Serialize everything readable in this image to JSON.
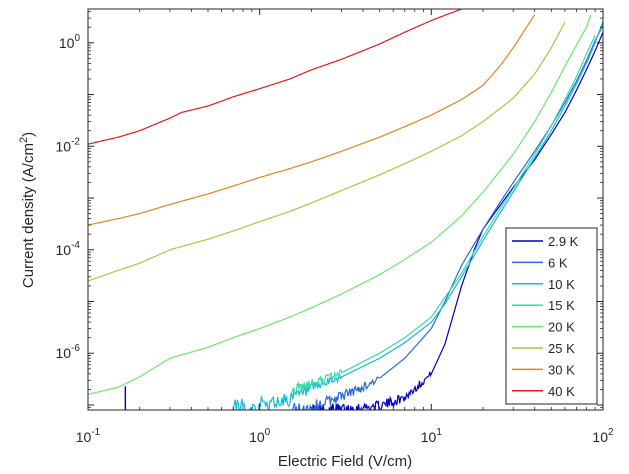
{
  "chart_data": {
    "type": "line",
    "title": "",
    "xlabel": "Electric Field (V/cm)",
    "ylabel_main": "Current density (A/cm",
    "ylabel_sup": "2",
    "ylabel_close": ")",
    "x_scale": "log",
    "y_scale": "log",
    "xlim": [
      0.1,
      100
    ],
    "ylim": [
      8e-08,
      4.5
    ],
    "grid": false,
    "legend_position": "bottom-right",
    "x_ticks": [
      {
        "value": 0.1,
        "base": "10",
        "exp": "-1"
      },
      {
        "value": 1,
        "base": "10",
        "exp": "0"
      },
      {
        "value": 10,
        "base": "10",
        "exp": "1"
      },
      {
        "value": 100,
        "base": "10",
        "exp": "2"
      }
    ],
    "y_ticks": [
      {
        "value": 1e-06,
        "base": "10",
        "exp": "-6"
      },
      {
        "value": 0.0001,
        "base": "10",
        "exp": "-4"
      },
      {
        "value": 0.01,
        "base": "10",
        "exp": "-2"
      },
      {
        "value": 1,
        "base": "10",
        "exp": "0"
      }
    ],
    "series": [
      {
        "name": "2.9 K",
        "color": "#0000c8",
        "noise_below_x": 10,
        "x": [
          2,
          3,
          5,
          7,
          10,
          12,
          15,
          18,
          20,
          25,
          30,
          40,
          50,
          60,
          70,
          80,
          90,
          100
        ],
        "y": [
          8e-08,
          8.2e-08,
          9.5e-08,
          1.4e-07,
          4e-07,
          1.5e-06,
          2e-05,
          0.00011,
          0.00025,
          0.0007,
          0.0016,
          0.0055,
          0.017,
          0.045,
          0.12,
          0.3,
          0.7,
          1.6
        ]
      },
      {
        "name": "6 K",
        "color": "#2a6ad6",
        "noise_below_x": 5,
        "x": [
          1.5,
          2,
          3,
          4,
          5,
          7,
          10,
          12,
          15,
          20,
          25,
          30,
          40,
          50,
          60,
          70,
          80,
          90,
          100
        ],
        "y": [
          8e-08,
          9e-08,
          1.5e-07,
          2.2e-07,
          3.3e-07,
          8e-07,
          3e-06,
          1e-05,
          5e-05,
          0.00025,
          0.0008,
          0.002,
          0.008,
          0.025,
          0.07,
          0.18,
          0.45,
          1.1,
          2.2
        ]
      },
      {
        "name": "10 K",
        "color": "#18b8d8",
        "noise_below_x": 3,
        "x": [
          0.7,
          1,
          1.5,
          2,
          3,
          5,
          7,
          10,
          12,
          15,
          20,
          25,
          30,
          40,
          50,
          60,
          70,
          80,
          90,
          100
        ],
        "y": [
          8e-08,
          1e-07,
          1.3e-07,
          2e-07,
          3.5e-07,
          8e-07,
          1.6e-06,
          4e-06,
          9e-06,
          3e-05,
          0.00015,
          0.0005,
          0.0013,
          0.006,
          0.02,
          0.06,
          0.16,
          0.4,
          1.0,
          2.6
        ]
      },
      {
        "name": "15 K",
        "color": "#3ad8a6",
        "noise_below_x": 3,
        "x": [
          1.5,
          2,
          3,
          5,
          7,
          10,
          15,
          20,
          25,
          30,
          40,
          50,
          60,
          70,
          80,
          90
        ],
        "y": [
          1.8e-07,
          2.5e-07,
          4.2e-07,
          1e-06,
          2e-06,
          5e-06,
          3.5e-05,
          0.00018,
          0.0006,
          0.0015,
          0.007,
          0.025,
          0.08,
          0.22,
          0.6,
          1.4
        ]
      },
      {
        "name": "20 K",
        "color": "#6ae86a",
        "noise_below_x": 0,
        "x": [
          0.1,
          0.15,
          0.2,
          0.3,
          0.5,
          0.7,
          1,
          1.5,
          2,
          3,
          5,
          7,
          10,
          15,
          20,
          30,
          40,
          50,
          60,
          70,
          80,
          85
        ],
        "y": [
          1.6e-07,
          2.2e-07,
          3.5e-07,
          8e-07,
          1.3e-06,
          2e-06,
          3e-06,
          5e-06,
          7.5e-06,
          1.4e-05,
          3.3e-05,
          6.5e-05,
          0.00014,
          0.00045,
          0.0013,
          0.007,
          0.03,
          0.11,
          0.35,
          0.9,
          2.0,
          3.5
        ]
      },
      {
        "name": "25 K",
        "color": "#a8c840",
        "noise_below_x": 0,
        "x": [
          0.1,
          0.15,
          0.2,
          0.3,
          0.5,
          0.7,
          1,
          1.5,
          2,
          3,
          5,
          7,
          10,
          15,
          20,
          30,
          40,
          50,
          60
        ],
        "y": [
          2.5e-05,
          4e-05,
          5.5e-05,
          0.0001,
          0.00016,
          0.00023,
          0.00035,
          0.00055,
          0.0008,
          0.0014,
          0.0028,
          0.0046,
          0.008,
          0.016,
          0.03,
          0.085,
          0.25,
          0.8,
          2.5
        ]
      },
      {
        "name": "30 K",
        "color": "#e2841e",
        "noise_below_x": 0,
        "x": [
          0.1,
          0.15,
          0.2,
          0.3,
          0.5,
          0.7,
          1,
          1.5,
          2,
          3,
          5,
          7,
          10,
          15,
          20,
          25,
          30,
          40
        ],
        "y": [
          0.0003,
          0.0004,
          0.0005,
          0.00075,
          0.0012,
          0.0017,
          0.0025,
          0.0037,
          0.005,
          0.008,
          0.015,
          0.024,
          0.04,
          0.08,
          0.15,
          0.35,
          0.8,
          3.5
        ]
      },
      {
        "name": "40 K",
        "color": "#e41a1c",
        "noise_below_x": 0,
        "x": [
          0.1,
          0.15,
          0.2,
          0.3,
          0.35,
          0.5,
          0.7,
          1,
          1.5,
          2,
          3,
          5,
          7,
          10,
          15,
          20,
          21
        ],
        "y": [
          0.011,
          0.015,
          0.02,
          0.035,
          0.045,
          0.06,
          0.09,
          0.13,
          0.2,
          0.3,
          0.48,
          0.95,
          1.6,
          2.7,
          4.5,
          7,
          8
        ]
      }
    ],
    "spike": {
      "series": "2.9 K",
      "x": 0.165,
      "y_from": 8e-08,
      "y_to": 2.3e-07
    }
  }
}
